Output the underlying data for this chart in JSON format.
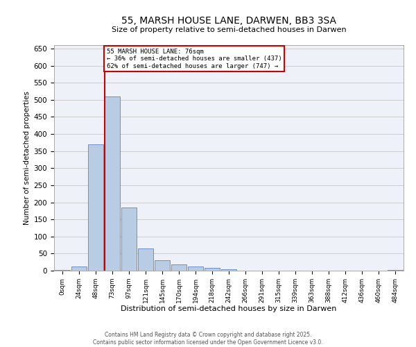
{
  "title": "55, MARSH HOUSE LANE, DARWEN, BB3 3SA",
  "subtitle": "Size of property relative to semi-detached houses in Darwen",
  "xlabel": "Distribution of semi-detached houses by size in Darwen",
  "ylabel": "Number of semi-detached properties",
  "footer_line1": "Contains HM Land Registry data © Crown copyright and database right 2025.",
  "footer_line2": "Contains public sector information licensed under the Open Government Licence v3.0.",
  "bin_labels": [
    "0sqm",
    "24sqm",
    "48sqm",
    "73sqm",
    "97sqm",
    "121sqm",
    "145sqm",
    "170sqm",
    "194sqm",
    "218sqm",
    "242sqm",
    "266sqm",
    "291sqm",
    "315sqm",
    "339sqm",
    "363sqm",
    "388sqm",
    "412sqm",
    "436sqm",
    "460sqm",
    "484sqm"
  ],
  "bar_values": [
    2,
    12,
    370,
    510,
    185,
    65,
    30,
    18,
    12,
    8,
    4,
    0,
    0,
    0,
    0,
    0,
    0,
    0,
    0,
    0,
    2
  ],
  "bar_color": "#b8cce4",
  "bar_edge_color": "#4472c4",
  "grid_color": "#cccccc",
  "bg_color": "#eef2f8",
  "property_line_label": "55 MARSH HOUSE LANE: 76sqm",
  "pct_smaller": 36,
  "pct_smaller_count": 437,
  "pct_larger": 62,
  "pct_larger_count": 747,
  "annotation_box_color": "#cc0000",
  "ylim": [
    0,
    660
  ],
  "yticks": [
    0,
    50,
    100,
    150,
    200,
    250,
    300,
    350,
    400,
    450,
    500,
    550,
    600,
    650
  ]
}
